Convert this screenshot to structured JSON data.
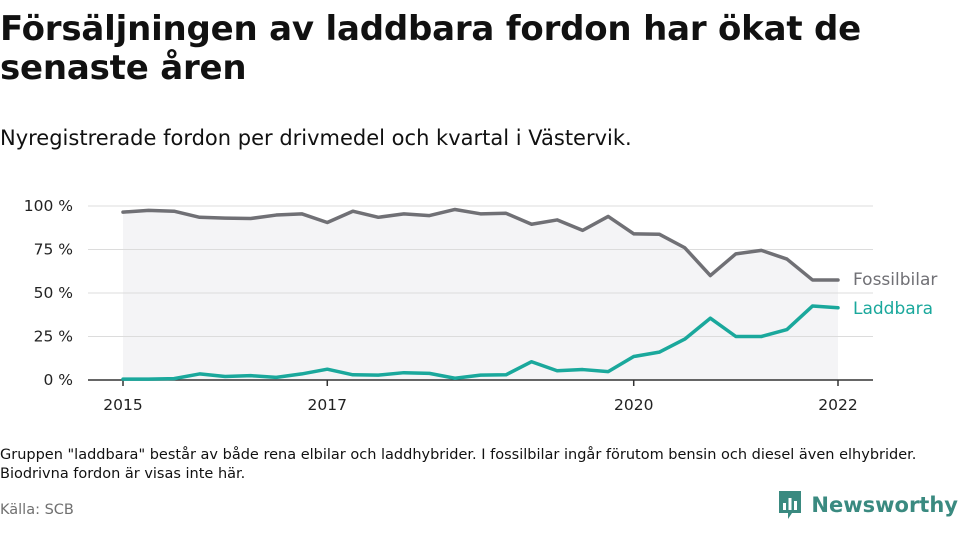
{
  "title": "Försäljningen av laddbara fordon har ökat de senaste åren",
  "subtitle": "Nyregistrerade fordon per drivmedel och kvartal i Västervik.",
  "note": "Gruppen \"laddbara\" består av både rena elbilar och laddhybrider. I fossilbilar ingår förutom bensin och diesel även elhybrider. Biodrivna fordon är visas inte här.",
  "source": "Källa: SCB",
  "brand": "Newsworthy",
  "colors": {
    "fossil": "#707075",
    "laddbara": "#1aa89c",
    "brand": "#3a8a80"
  },
  "chart_data": {
    "type": "line",
    "title": "Försäljningen av laddbara fordon har ökat de senaste åren",
    "subtitle": "Nyregistrerade fordon per drivmedel och kvartal i Västervik.",
    "x_tick_labels": [
      "2015",
      "2017",
      "2020",
      "2022"
    ],
    "x_tick_positions": [
      0,
      8,
      20,
      28
    ],
    "y_tick_labels": [
      "0 %",
      "25 %",
      "50 %",
      "75 %",
      "100 %"
    ],
    "y_ticks": [
      0,
      25,
      50,
      75,
      100
    ],
    "ylim": [
      0,
      100
    ],
    "unit": "%",
    "grid": true,
    "legend_placement": "line-end",
    "x": [
      "2015 Q1",
      "2015 Q2",
      "2015 Q3",
      "2015 Q4",
      "2016 Q1",
      "2016 Q2",
      "2016 Q3",
      "2016 Q4",
      "2017 Q1",
      "2017 Q2",
      "2017 Q3",
      "2017 Q4",
      "2018 Q1",
      "2018 Q2",
      "2018 Q3",
      "2018 Q4",
      "2019 Q1",
      "2019 Q2",
      "2019 Q3",
      "2019 Q4",
      "2020 Q1",
      "2020 Q2",
      "2020 Q3",
      "2020 Q4",
      "2021 Q1",
      "2021 Q2",
      "2021 Q3",
      "2021 Q4",
      "2022 Q1"
    ],
    "series": [
      {
        "name": "Fossilbilar",
        "color": "#707075",
        "values": [
          96.5,
          97.5,
          97,
          93.5,
          93,
          92.8,
          94.8,
          95.5,
          90.5,
          97,
          93.5,
          95.5,
          94.5,
          98,
          95.5,
          95.8,
          89.5,
          92,
          86,
          94,
          84,
          83.8,
          76,
          60,
          72.5,
          74.5,
          69.5,
          57.5,
          57.5
        ]
      },
      {
        "name": "Laddbara",
        "color": "#1aa89c",
        "values": [
          0.5,
          0.5,
          0.8,
          3.5,
          2,
          2.5,
          1.5,
          3.5,
          6.2,
          3,
          2.8,
          4.2,
          3.8,
          1,
          2.8,
          3,
          10.5,
          5.3,
          6,
          4.8,
          13.5,
          16,
          23.5,
          35.5,
          25,
          25,
          29,
          42.5,
          41.5
        ]
      }
    ]
  }
}
